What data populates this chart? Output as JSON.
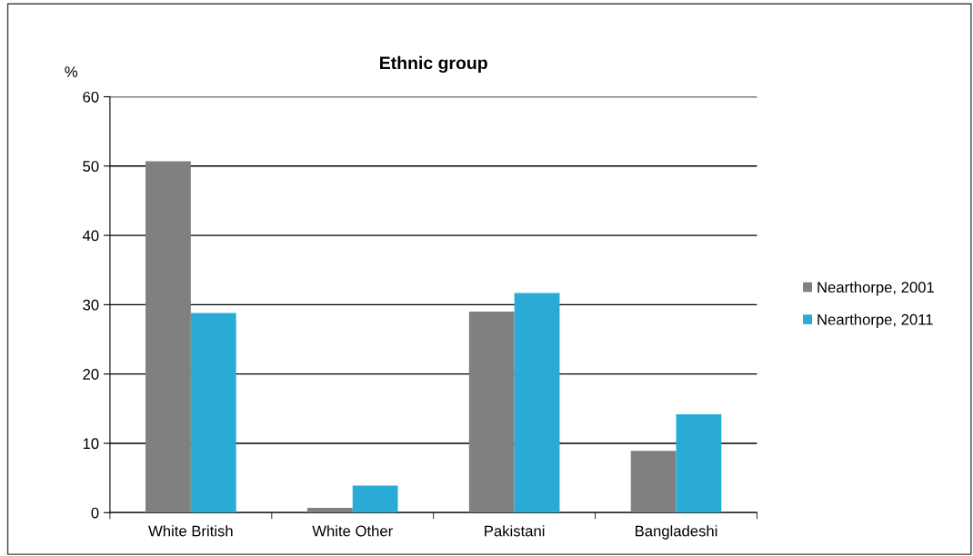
{
  "chart_data": {
    "type": "bar",
    "title": "Ethnic group",
    "ylabel": "%",
    "categories": [
      "White British",
      "White Other",
      "Pakistani",
      "Bangladeshi"
    ],
    "series": [
      {
        "name": "Nearthorpe, 2001",
        "color": "#808080",
        "values": [
          50.7,
          0.7,
          29.0,
          8.9
        ]
      },
      {
        "name": "Nearthorpe, 2011",
        "color": "#29abd6",
        "values": [
          28.8,
          3.9,
          31.7,
          14.2
        ]
      }
    ],
    "ylim": [
      0,
      60
    ],
    "yticks": [
      0,
      10,
      20,
      30,
      40,
      50,
      60
    ],
    "grid": "y",
    "legend": "right"
  }
}
